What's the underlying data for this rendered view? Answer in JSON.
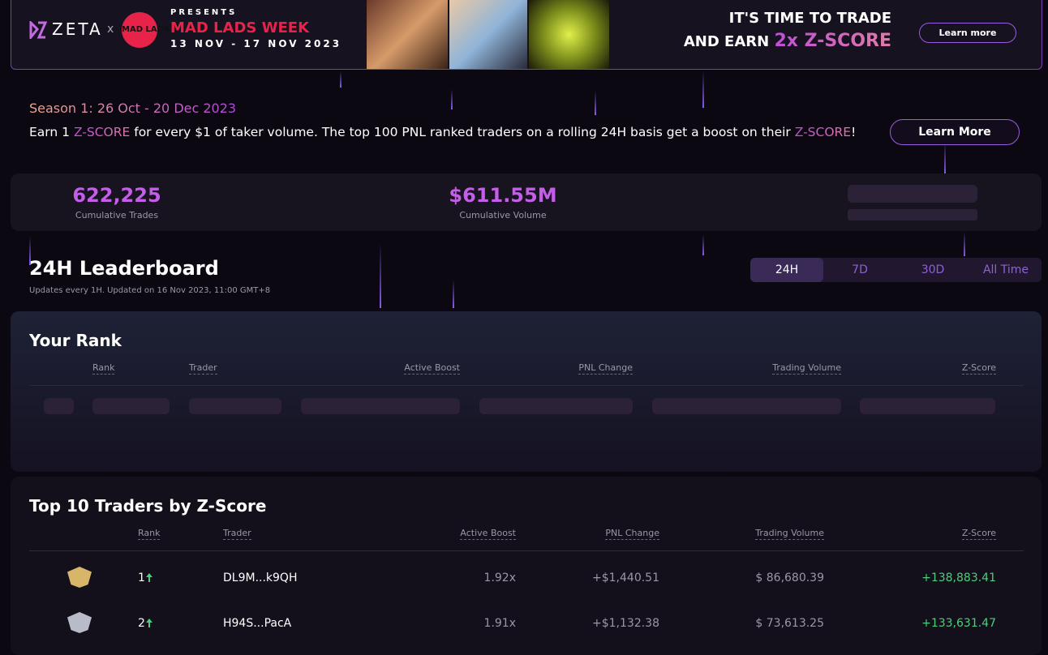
{
  "banner": {
    "brand": "ZETA",
    "connector": "x",
    "partner": "MAD LADS",
    "presents": "PRESENTS",
    "event": "MAD LADS WEEK",
    "dates": "13 NOV - 17 NOV 2023",
    "headline_line1": "IT'S TIME TO TRADE",
    "headline_line2": "AND EARN",
    "headline_highlight": "2x Z-SCORE",
    "button": "Learn more"
  },
  "season": {
    "title": "Season 1: 26 Oct - 20 Dec 2023",
    "text": [
      {
        "text": "Earn 1 ",
        "highlight": false
      },
      {
        "text": "Z-SCORE",
        "highlight": true
      },
      {
        "text": " for every $1 of taker volume. The top 100 PNL ranked traders on a rolling 24H basis get a boost on their ",
        "highlight": false
      },
      {
        "text": "Z-SCORE",
        "highlight": true
      },
      {
        "text": "!",
        "highlight": false
      }
    ],
    "button": "Learn More"
  },
  "stats": [
    {
      "value": "622,225",
      "label": "Cumulative Trades"
    },
    {
      "value": "$611.55M",
      "label": "Cumulative Volume"
    }
  ],
  "leaderboard": {
    "title": "24H Leaderboard",
    "updated": "Updates every 1H. Updated on 16 Nov 2023, 11:00 GMT+8",
    "tabs": [
      "24H",
      "7D",
      "30D",
      "All Time"
    ],
    "active_tab": 0
  },
  "your_rank": {
    "title": "Your Rank",
    "columns": [
      "Rank",
      "Trader",
      "Active Boost",
      "PNL Change",
      "Trading Volume",
      "Z-Score"
    ]
  },
  "top_traders": {
    "title": "Top 10 Traders by Z-Score",
    "columns": [
      "Rank",
      "Trader",
      "Active Boost",
      "PNL Change",
      "Trading Volume",
      "Z-Score"
    ],
    "rows": [
      {
        "rank": "1",
        "trader": "DL9M...k9QH",
        "active_boost": "1.92x",
        "pnl_change": "+$1,440.51",
        "trading_volume": "$ 86,680.39",
        "z_score": "+138,883.41"
      },
      {
        "rank": "2",
        "trader": "H94S...PacA",
        "active_boost": "1.91x",
        "pnl_change": "+$1,132.38",
        "trading_volume": "$ 73,613.25",
        "z_score": "+133,631.47"
      }
    ]
  }
}
